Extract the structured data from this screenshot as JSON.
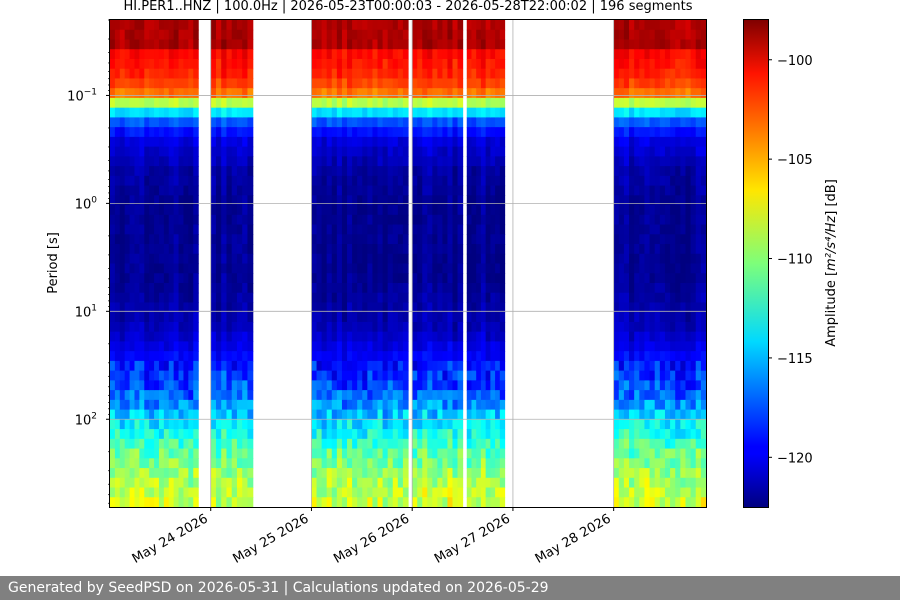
{
  "chart_data": {
    "type": "heatmap",
    "title": "HI.PER1..HNZ | 100.0Hz | 2026-05-23T00:00:03 - 2026-05-28T22:00:02 | 196 segments",
    "ylabel": "Period [s]",
    "y_scale": "log",
    "y_inverted": true,
    "ylim": [
      0.02,
      650
    ],
    "y_ticks": [
      {
        "value": 0.1,
        "base": "10",
        "exp": "−1"
      },
      {
        "value": 1,
        "base": "10",
        "exp": "0"
      },
      {
        "value": 10,
        "base": "10",
        "exp": "1"
      },
      {
        "value": 100,
        "base": "10",
        "exp": "2"
      }
    ],
    "xlim": [
      "2026-05-23T00:00:03",
      "2026-05-28T22:00:02"
    ],
    "x_ticks": [
      {
        "value": "2026-05-24",
        "label": "May 24 2026"
      },
      {
        "value": "2026-05-25",
        "label": "May 25 2026"
      },
      {
        "value": "2026-05-26",
        "label": "May 26 2026"
      },
      {
        "value": "2026-05-27",
        "label": "May 27 2026"
      },
      {
        "value": "2026-05-28",
        "label": "May 28 2026"
      }
    ],
    "data_intervals": [
      [
        "2026-05-23T00:00:03",
        "2026-05-23T21:00:00"
      ],
      [
        "2026-05-24T00:00:00",
        "2026-05-24T10:00:00"
      ],
      [
        "2026-05-25T00:00:00",
        "2026-05-25T23:00:00"
      ],
      [
        "2026-05-26T00:00:00",
        "2026-05-26T12:00:00"
      ],
      [
        "2026-05-26T13:00:00",
        "2026-05-26T22:00:00"
      ],
      [
        "2026-05-28T00:00:00",
        "2026-05-28T22:00:02"
      ]
    ],
    "grid": true,
    "colorbar": {
      "label_prefix": "Amplitude [",
      "label_units": "m²/s⁴/Hz",
      "label_suffix": "] [dB]",
      "range": [
        -122.5,
        -98
      ],
      "ticks": [
        -100,
        -105,
        -110,
        -115,
        -120
      ],
      "tick_labels": [
        "−100",
        "−105",
        "−110",
        "−115",
        "−120"
      ],
      "colormap": "jet"
    },
    "spectrum_profile": [
      {
        "period": 0.02,
        "db": -99
      },
      {
        "period": 0.035,
        "db": -99
      },
      {
        "period": 0.04,
        "db": -101
      },
      {
        "period": 0.07,
        "db": -102
      },
      {
        "period": 0.1,
        "db": -104
      },
      {
        "period": 0.13,
        "db": -112
      },
      {
        "period": 0.17,
        "db": -117
      },
      {
        "period": 0.25,
        "db": -120
      },
      {
        "period": 0.5,
        "db": -121.5
      },
      {
        "period": 1,
        "db": -122
      },
      {
        "period": 5,
        "db": -122
      },
      {
        "period": 15,
        "db": -121
      },
      {
        "period": 30,
        "db": -119
      },
      {
        "period": 60,
        "db": -117
      },
      {
        "period": 100,
        "db": -114
      },
      {
        "period": 200,
        "db": -111
      },
      {
        "period": 400,
        "db": -109
      },
      {
        "period": 650,
        "db": -108
      }
    ]
  },
  "footer": {
    "text": "Generated by SeedPSD on 2026-05-31 | Calculations updated on 2026-05-29"
  }
}
